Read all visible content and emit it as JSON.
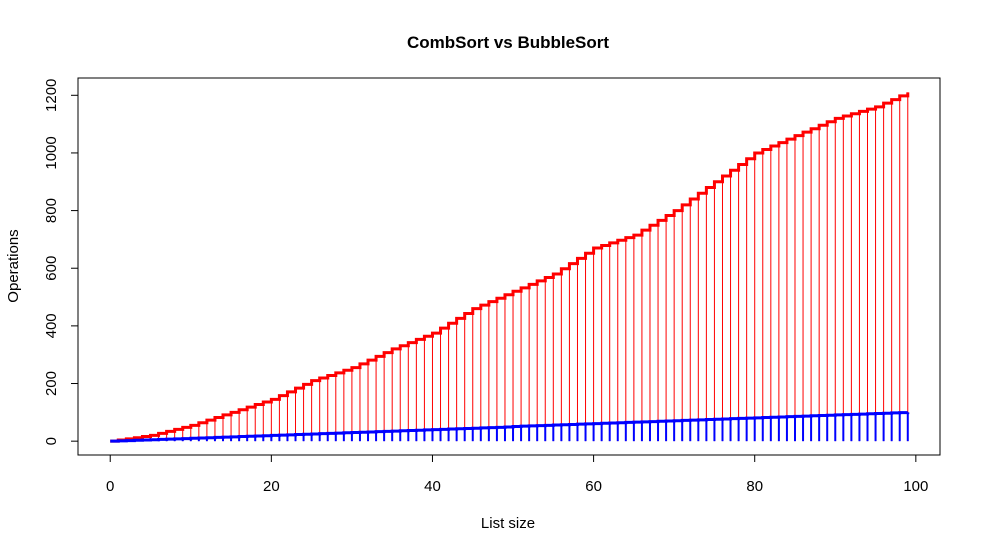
{
  "chart_data": {
    "type": "line",
    "title": "CombSort vs BubbleSort",
    "xlabel": "List size",
    "ylabel": "Operations",
    "xlim": [
      -4,
      103
    ],
    "ylim": [
      -48,
      1260
    ],
    "xticks": [
      0,
      20,
      40,
      60,
      80,
      100
    ],
    "yticks": [
      0,
      200,
      400,
      600,
      800,
      1000,
      1200
    ],
    "series": [
      {
        "name": "BubbleSort",
        "color": "#ff0000",
        "render": "step-with-stems",
        "x": [
          0,
          5,
          10,
          15,
          20,
          25,
          30,
          35,
          40,
          45,
          50,
          55,
          60,
          65,
          70,
          75,
          80,
          85,
          90,
          95,
          99
        ],
        "y": [
          0,
          20,
          55,
          100,
          145,
          210,
          255,
          320,
          375,
          460,
          520,
          580,
          670,
          715,
          800,
          900,
          1000,
          1060,
          1120,
          1160,
          1210
        ]
      },
      {
        "name": "CombSort",
        "color": "#0000ff",
        "render": "step-with-stems",
        "x": [
          0,
          99
        ],
        "y": [
          0,
          100
        ]
      }
    ]
  }
}
